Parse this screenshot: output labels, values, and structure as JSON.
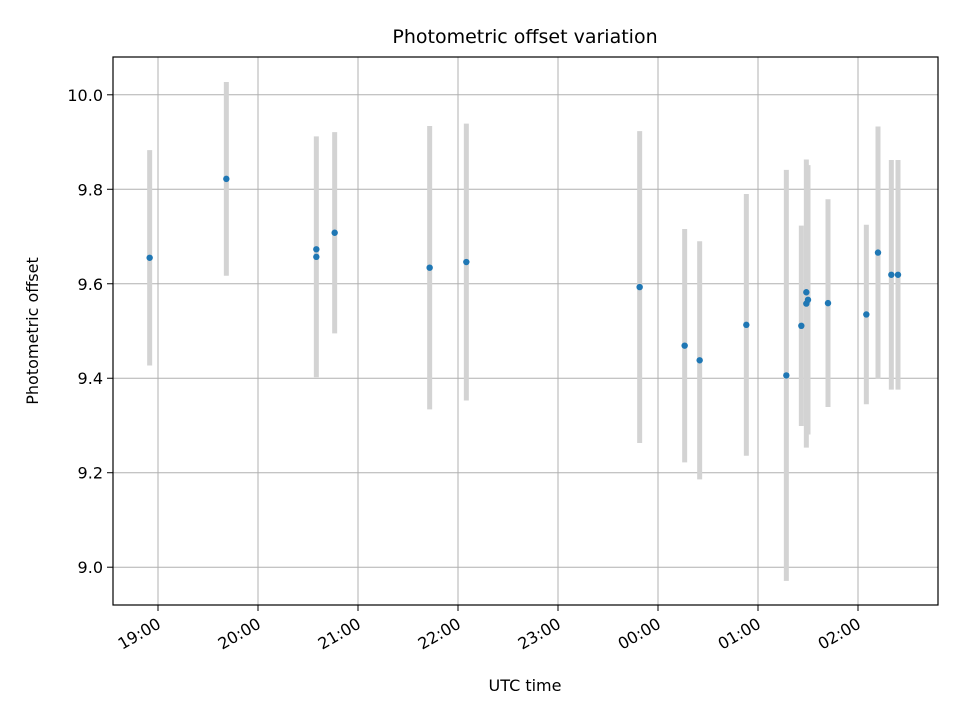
{
  "chart_data": {
    "type": "scatter",
    "title": "Photometric offset variation",
    "xlabel": "UTC time",
    "ylabel": "Photometric offset",
    "x_ticks": [
      "19:00",
      "20:00",
      "21:00",
      "22:00",
      "23:00",
      "00:00",
      "01:00",
      "02:00"
    ],
    "y_ticks": [
      "9.0",
      "9.2",
      "9.4",
      "9.6",
      "9.8",
      "10.0"
    ],
    "ylim": [
      8.92,
      10.08
    ],
    "xlim": [
      "18:33",
      "02:48"
    ],
    "grid": true,
    "marker_color": "#1f77b4",
    "errorbar_color": "#d3d3d3",
    "points": [
      {
        "t": "18:55",
        "y": 9.655,
        "err": 0.228
      },
      {
        "t": "19:41",
        "y": 9.822,
        "err": 0.205
      },
      {
        "t": "20:35",
        "y": 9.673,
        "err": 0.0
      },
      {
        "t": "20:35",
        "y": 9.657,
        "err": 0.255
      },
      {
        "t": "20:46",
        "y": 9.708,
        "err": 0.213
      },
      {
        "t": "21:43",
        "y": 9.634,
        "err": 0.3
      },
      {
        "t": "22:05",
        "y": 9.646,
        "err": 0.293
      },
      {
        "t": "23:49",
        "y": 9.593,
        "err": 0.33
      },
      {
        "t": "00:16",
        "y": 9.469,
        "err": 0.247
      },
      {
        "t": "00:25",
        "y": 9.438,
        "err": 0.252
      },
      {
        "t": "00:53",
        "y": 9.513,
        "err": 0.277
      },
      {
        "t": "01:17",
        "y": 9.406,
        "err": 0.435
      },
      {
        "t": "01:26",
        "y": 9.511,
        "err": 0.212
      },
      {
        "t": "01:29",
        "y": 9.558,
        "err": 0.305
      },
      {
        "t": "01:29",
        "y": 9.582,
        "err": 0.0
      },
      {
        "t": "01:30",
        "y": 9.566,
        "err": 0.285
      },
      {
        "t": "01:42",
        "y": 9.559,
        "err": 0.22
      },
      {
        "t": "02:05",
        "y": 9.535,
        "err": 0.19
      },
      {
        "t": "02:12",
        "y": 9.666,
        "err": 0.267
      },
      {
        "t": "02:20",
        "y": 9.619,
        "err": 0.243
      },
      {
        "t": "02:24",
        "y": 9.619,
        "err": 0.243
      }
    ]
  }
}
